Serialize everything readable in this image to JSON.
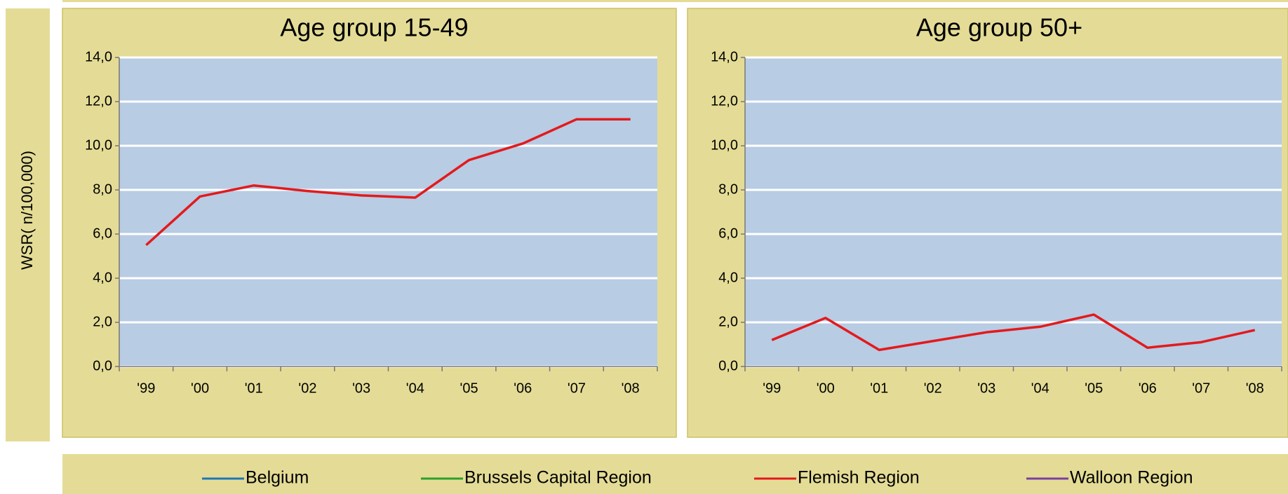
{
  "y_axis_label": "WSR( n/100,000)",
  "legend": [
    {
      "name": "Belgium",
      "color": "#1f77b4"
    },
    {
      "name": "Brussels Capital Region",
      "color": "#2ca02c"
    },
    {
      "name": "Flemish Region",
      "color": "#e31a1c"
    },
    {
      "name": "Walloon Region",
      "color": "#7b3f9e"
    }
  ],
  "chart_data": [
    {
      "type": "line",
      "title": "Age group 15-49",
      "categories": [
        "'99",
        "'00",
        "'01",
        "'02",
        "'03",
        "'04",
        "'05",
        "'06",
        "'07",
        "'08"
      ],
      "series": [
        {
          "name": "Flemish Region",
          "color": "#e31a1c",
          "values": [
            5.5,
            7.7,
            8.2,
            7.95,
            7.75,
            7.65,
            9.35,
            10.1,
            11.2,
            11.2
          ]
        }
      ],
      "ylim": [
        0,
        14
      ],
      "yticks": [
        {
          "value": 0,
          "label": "0,0"
        },
        {
          "value": 2,
          "label": "2,0"
        },
        {
          "value": 4,
          "label": "4,0"
        },
        {
          "value": 6,
          "label": "6,0"
        },
        {
          "value": 8,
          "label": "8,0"
        },
        {
          "value": 10,
          "label": "10,0"
        },
        {
          "value": 12,
          "label": "12,0"
        },
        {
          "value": 14,
          "label": "14,0"
        }
      ],
      "grid": true
    },
    {
      "type": "line",
      "title": "Age group 50+",
      "categories": [
        "'99",
        "'00",
        "'01",
        "'02",
        "'03",
        "'04",
        "'05",
        "'06",
        "'07",
        "'08"
      ],
      "series": [
        {
          "name": "Flemish Region",
          "color": "#e31a1c",
          "values": [
            1.2,
            2.2,
            0.75,
            1.15,
            1.55,
            1.8,
            2.35,
            0.85,
            1.1,
            1.65
          ]
        }
      ],
      "ylim": [
        0,
        14
      ],
      "yticks": [
        {
          "value": 0,
          "label": "0,0"
        },
        {
          "value": 2,
          "label": "2,0"
        },
        {
          "value": 4,
          "label": "4,0"
        },
        {
          "value": 6,
          "label": "6,0"
        },
        {
          "value": 8,
          "label": "8,0"
        },
        {
          "value": 10,
          "label": "10,0"
        },
        {
          "value": 12,
          "label": "12,0"
        },
        {
          "value": 14,
          "label": "14,0"
        }
      ],
      "grid": true
    }
  ]
}
